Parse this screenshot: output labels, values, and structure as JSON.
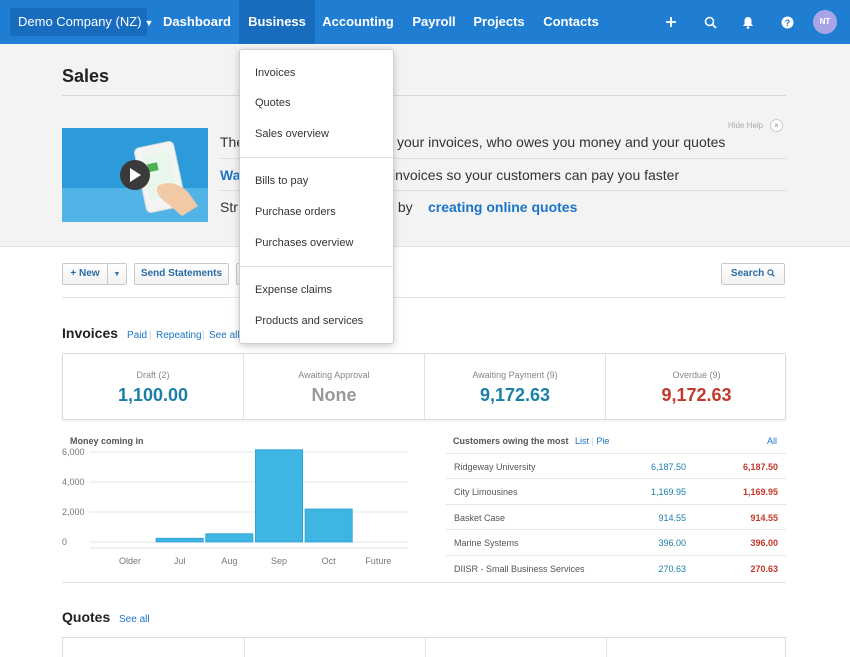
{
  "nav": {
    "org": "Demo Company (NZ)",
    "items": [
      "Dashboard",
      "Business",
      "Accounting",
      "Payroll",
      "Projects",
      "Contacts"
    ],
    "active": "Business",
    "icons": [
      "plus-icon",
      "search-icon",
      "bell-icon",
      "help-icon"
    ],
    "avatar": "NT",
    "color": "#1f7ed1"
  },
  "page": {
    "title": "Sales"
  },
  "help": {
    "line1": "The",
    "line1_rest": "your invoices, who owes you money and your quotes",
    "line2_link": "Wa",
    "line2_rest": "invoices so your customers can pay you faster",
    "line3": "Str",
    "line3_mid": "ss by ",
    "line3_link": "creating online quotes",
    "hide": "Hide Help"
  },
  "toolbar": {
    "new": "+ New",
    "send": "Send Statements",
    "search": "Search"
  },
  "invoices": {
    "title": "Invoices",
    "links": [
      "Paid",
      "Repeating",
      "See all"
    ],
    "stats": [
      {
        "label": "Draft (2)",
        "value": "1,100.00",
        "color": "#1b7fa8"
      },
      {
        "label": "Awaiting Approval",
        "value": "None",
        "color": "#999999"
      },
      {
        "label": "Awaiting Payment (9)",
        "value": "9,172.63",
        "color": "#1b7fa8"
      },
      {
        "label": "Overdue (9)",
        "value": "9,172.63",
        "color": "#c0392b"
      }
    ]
  },
  "chart_data": {
    "type": "bar",
    "title": "Money coming in",
    "categories": [
      "Older",
      "Jul",
      "Aug",
      "Sep",
      "Oct",
      "Future"
    ],
    "values": [
      0,
      250,
      550,
      6150,
      2200,
      0
    ],
    "ylim": [
      0,
      6000
    ],
    "yticks": [
      "6,000",
      "4,000",
      "2,000",
      "0"
    ],
    "color": "#3fb5e4"
  },
  "owing": {
    "title": "Customers owing the most",
    "views": [
      "List",
      "Pie"
    ],
    "all": "All",
    "rows": [
      {
        "name": "Ridgeway University",
        "a": "6,187.50",
        "b": "6,187.50"
      },
      {
        "name": "City Limousines",
        "a": "1,169.95",
        "b": "1,169.95"
      },
      {
        "name": "Basket Case",
        "a": "914.55",
        "b": "914.55"
      },
      {
        "name": "Marine Systems",
        "a": "396.00",
        "b": "396.00"
      },
      {
        "name": "DIISR - Small Business Services",
        "a": "270.63",
        "b": "270.63"
      }
    ]
  },
  "quotes": {
    "title": "Quotes",
    "see_all": "See all"
  },
  "dropdown": {
    "groups": [
      [
        "Invoices",
        "Quotes",
        "Sales overview"
      ],
      [
        "Bills to pay",
        "Purchase orders",
        "Purchases overview"
      ],
      [
        "Expense claims",
        "Products and services"
      ]
    ]
  }
}
